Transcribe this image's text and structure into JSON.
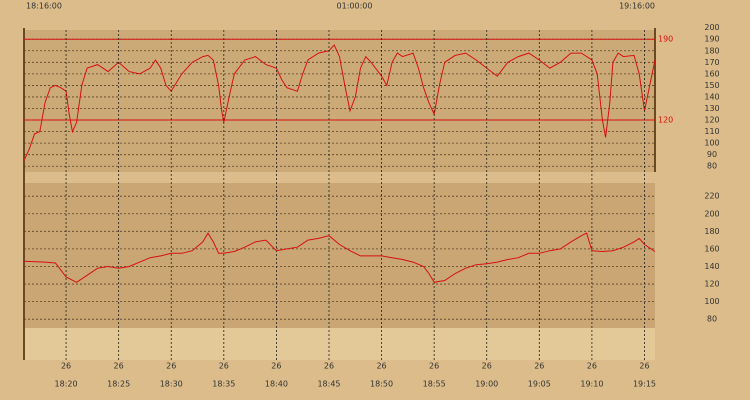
{
  "chart_data": [
    {
      "type": "line",
      "header_labels": [
        "18:16:00",
        "01:00:00",
        "19:16:00"
      ],
      "x": [
        0,
        0.5,
        1,
        1.5,
        2,
        2.5,
        3,
        3.5,
        4,
        4.3,
        4.6,
        5,
        5.5,
        6,
        7,
        8,
        9,
        10,
        11,
        12,
        12.5,
        13,
        13.5,
        14,
        15,
        16,
        17,
        17.5,
        18,
        18.5,
        18.8,
        19,
        19.5,
        20,
        21,
        22,
        23,
        24,
        24.5,
        25,
        26,
        26.5,
        27,
        28,
        29,
        29.5,
        30,
        30.5,
        31,
        31.5,
        32,
        32.5,
        33,
        34,
        34.5,
        35,
        35.5,
        36,
        37,
        37.5,
        38,
        38.5,
        39,
        39.5,
        40,
        41,
        42,
        43,
        44,
        45,
        46,
        47,
        48,
        49,
        50,
        51,
        52,
        53,
        54,
        54.5,
        55,
        55.3,
        55.7,
        56,
        56.5,
        57,
        58,
        58.5,
        59,
        59.5,
        60
      ],
      "series": [
        {
          "color": "#d81010",
          "values": [
            85,
            95,
            108,
            110,
            135,
            148,
            150,
            148,
            145,
            125,
            110,
            118,
            150,
            165,
            168,
            162,
            170,
            162,
            160,
            165,
            172,
            165,
            150,
            145,
            160,
            170,
            175,
            176,
            172,
            150,
            128,
            118,
            140,
            160,
            172,
            175,
            168,
            165,
            155,
            148,
            145,
            160,
            172,
            178,
            180,
            185,
            175,
            150,
            128,
            140,
            165,
            175,
            170,
            158,
            150,
            170,
            178,
            175,
            178,
            165,
            148,
            135,
            125,
            150,
            170,
            176,
            178,
            172,
            165,
            158,
            170,
            175,
            178,
            172,
            165,
            170,
            178,
            178,
            172,
            160,
            120,
            105,
            135,
            170,
            178,
            175,
            176,
            160,
            128,
            150,
            172
          ]
        }
      ],
      "xlim": [
        0,
        60
      ],
      "ylim": [
        75,
        198
      ],
      "yticks": [
        80,
        90,
        100,
        110,
        120,
        130,
        140,
        150,
        160,
        170,
        180,
        190,
        200
      ],
      "ref_lines": [
        {
          "value": 190,
          "label": "190"
        },
        {
          "value": 120,
          "label": "120"
        }
      ],
      "grid": true
    },
    {
      "type": "line",
      "x": [
        0,
        2,
        3,
        4,
        5,
        6,
        7,
        8,
        9,
        10,
        11,
        12,
        13,
        14,
        15,
        16,
        17,
        17.5,
        18,
        18.5,
        19,
        20,
        21,
        22,
        23,
        24,
        25,
        26,
        27,
        28,
        29,
        30,
        31,
        32,
        33,
        34,
        35,
        36,
        37,
        38,
        38.5,
        39,
        40,
        41,
        42,
        43,
        44,
        45,
        46,
        47,
        48,
        49,
        50,
        51,
        52,
        53,
        53.5,
        54,
        55,
        56,
        57,
        58,
        58.5,
        59,
        60
      ],
      "series": [
        {
          "color": "#d81010",
          "values": [
            146,
            145,
            144,
            128,
            122,
            130,
            138,
            140,
            138,
            140,
            145,
            150,
            152,
            155,
            155,
            158,
            168,
            178,
            168,
            155,
            155,
            157,
            162,
            168,
            170,
            158,
            160,
            162,
            170,
            172,
            175,
            165,
            158,
            152,
            152,
            152,
            150,
            148,
            145,
            140,
            132,
            122,
            124,
            132,
            138,
            142,
            143,
            145,
            148,
            150,
            155,
            155,
            158,
            160,
            168,
            175,
            178,
            158,
            157,
            158,
            162,
            168,
            172,
            165,
            157
          ]
        }
      ],
      "xlim": [
        0,
        60
      ],
      "ylim": [
        70,
        235
      ],
      "yticks": [
        80,
        100,
        120,
        140,
        160,
        180,
        200,
        220
      ],
      "xticks": [
        {
          "value": 4,
          "label": "18:20"
        },
        {
          "value": 9,
          "label": "18:25"
        },
        {
          "value": 14,
          "label": "18:30"
        },
        {
          "value": 19,
          "label": "18:35"
        },
        {
          "value": 24,
          "label": "18:40"
        },
        {
          "value": 29,
          "label": "18:45"
        },
        {
          "value": 34,
          "label": "18:50"
        },
        {
          "value": 39,
          "label": "18:55"
        },
        {
          "value": 44,
          "label": "19:00"
        },
        {
          "value": 49,
          "label": "19:05"
        },
        {
          "value": 54,
          "label": "19:10"
        },
        {
          "value": 59,
          "label": "19:15"
        }
      ],
      "xtick_days": [
        "26",
        "26",
        "26",
        "26",
        "26",
        "26",
        "26",
        "26",
        "26",
        "26",
        "26",
        "26"
      ],
      "grid": true
    }
  ]
}
